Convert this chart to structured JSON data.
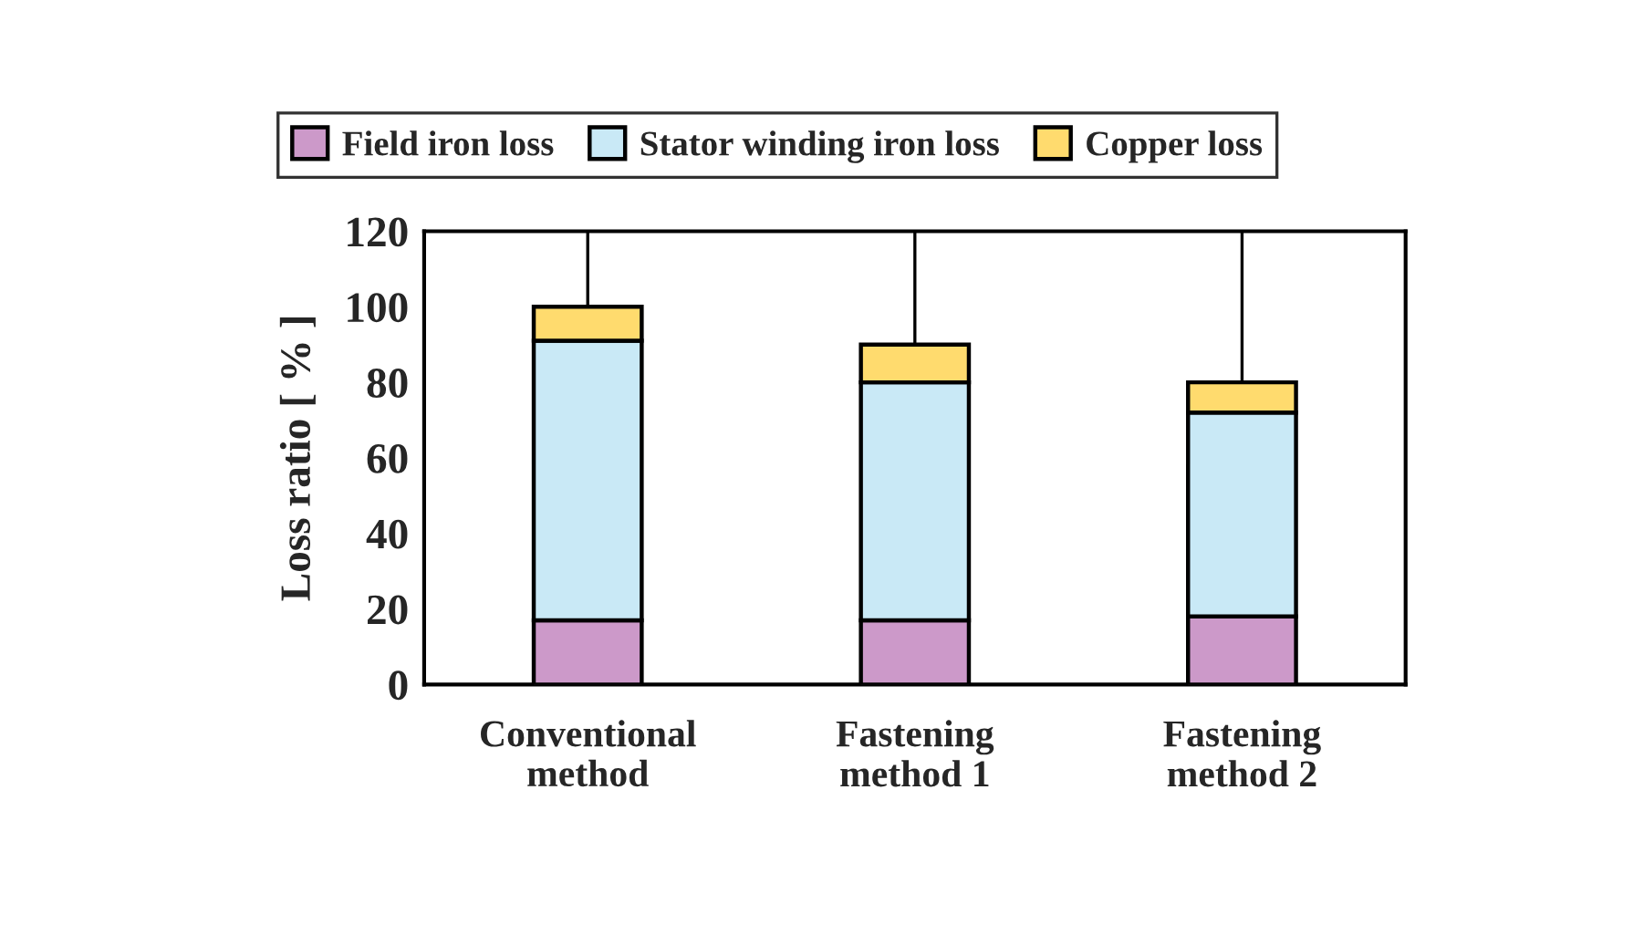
{
  "chart_data": {
    "type": "bar",
    "stacked": true,
    "ylabel": "Loss ratio [ % ]",
    "categories": [
      "Conventional\nmethod",
      "Fastening\nmethod 1",
      "Fastening\nmethod 2"
    ],
    "series": [
      {
        "name": "Field iron loss",
        "color": "#cc99c9",
        "values": [
          17,
          17,
          18
        ]
      },
      {
        "name": "Stator winding iron loss",
        "color": "#c9e9f6",
        "values": [
          74,
          63,
          54
        ]
      },
      {
        "name": "Copper loss",
        "color": "#ffdb6e",
        "values": [
          9,
          10,
          8
        ]
      }
    ],
    "ylim": [
      0,
      120
    ],
    "yticks": [
      0,
      20,
      40,
      60,
      80,
      100,
      120
    ],
    "grid": "x",
    "legend": "top"
  }
}
